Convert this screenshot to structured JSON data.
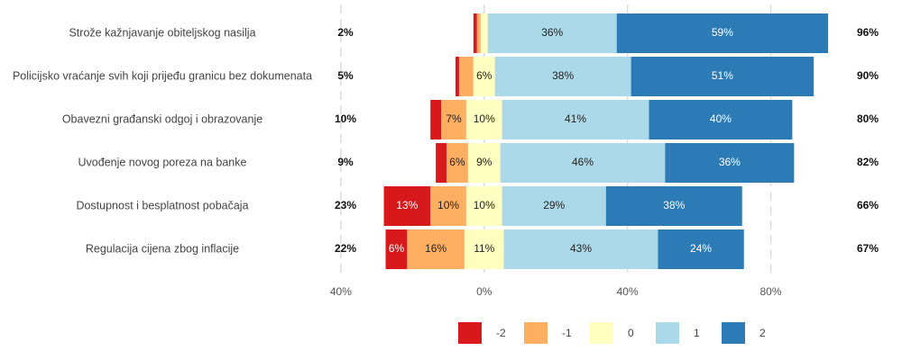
{
  "chart_data": {
    "type": "diverging_stacked_bar",
    "categories": [
      "Strože kažnjavanje obiteljskog nasilja",
      "Policijsko vraćanje svih koji prijeđu granicu bez dokumenata",
      "Obavezni građanski odgoj i obrazovanje",
      "Uvođenje novog poreza na banke",
      "Dostupnost i besplatnost pobačaja",
      "Regulacija cijena zbog inflacije"
    ],
    "series": [
      {
        "name": "-2",
        "color": "#d7191c",
        "values": [
          1,
          1,
          3,
          3,
          13,
          6
        ],
        "value_labels": [
          null,
          null,
          null,
          null,
          "13%",
          "6%"
        ]
      },
      {
        "name": "-1",
        "color": "#fdae61",
        "values": [
          1,
          4,
          7,
          6,
          10,
          16
        ],
        "value_labels": [
          null,
          null,
          "7%",
          "6%",
          "10%",
          "16%"
        ]
      },
      {
        "name": "0",
        "color": "#ffffbf",
        "values": [
          2,
          6,
          10,
          9,
          10,
          11
        ],
        "value_labels": [
          null,
          "6%",
          "10%",
          "9%",
          "10%",
          "11%"
        ]
      },
      {
        "name": "1",
        "color": "#abd9e9",
        "values": [
          36,
          38,
          41,
          46,
          29,
          43
        ],
        "value_labels": [
          "36%",
          "38%",
          "41%",
          "46%",
          "29%",
          "43%"
        ]
      },
      {
        "name": "2",
        "color": "#2c7bb6",
        "values": [
          59,
          51,
          40,
          36,
          38,
          24
        ],
        "value_labels": [
          "59%",
          "51%",
          "40%",
          "36%",
          "38%",
          "24%"
        ]
      }
    ],
    "left_totals": {
      "values": [
        2,
        5,
        10,
        9,
        23,
        22
      ],
      "value_labels": [
        "2%",
        "5%",
        "10%",
        "9%",
        "23%",
        "22%"
      ]
    },
    "right_totals": {
      "values": [
        96,
        90,
        80,
        82,
        66,
        67
      ],
      "value_labels": [
        "96%",
        "90%",
        "80%",
        "82%",
        "66%",
        "67%"
      ]
    },
    "xlim": [
      -44.5,
      99
    ],
    "xticks": [
      {
        "value": -40,
        "label": "40%"
      },
      {
        "value": 0,
        "label": "0%"
      },
      {
        "value": 40,
        "label": "40%"
      },
      {
        "value": 80,
        "label": "80%"
      }
    ],
    "grid": true,
    "legend": "bottom"
  }
}
